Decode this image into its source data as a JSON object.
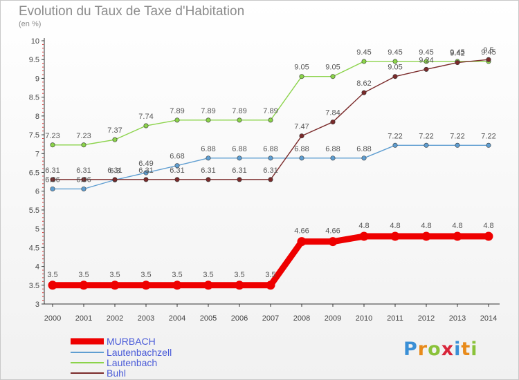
{
  "title": "Evolution du Taux de Taxe d'Habitation",
  "subtitle": "(en %)",
  "logo": {
    "text": "Proxiti",
    "letter_colors": [
      "#3a8fd6",
      "#e88a1a",
      "#8ac23a",
      "#d8253a",
      "#3a8fd6",
      "#e88a1a",
      "#8ac23a"
    ]
  },
  "chart_data": {
    "type": "line",
    "x": [
      "2000",
      "2001",
      "2002",
      "2003",
      "2004",
      "2005",
      "2006",
      "2007",
      "2008",
      "2009",
      "2010",
      "2011",
      "2012",
      "2013",
      "2014"
    ],
    "ylim": [
      3,
      10
    ],
    "yticks": [
      "3",
      "3.5",
      "4",
      "4.5",
      "5",
      "5.5",
      "6",
      "6.5",
      "7",
      "7.5",
      "8",
      "8.5",
      "9",
      "9.5",
      "10"
    ],
    "grid": false,
    "legend": "bottom-left",
    "series": [
      {
        "name": "MURBACH",
        "color": "#ee0000",
        "values": [
          3.5,
          3.5,
          3.5,
          3.5,
          3.5,
          3.5,
          3.5,
          3.5,
          4.66,
          4.66,
          4.8,
          4.8,
          4.8,
          4.8,
          4.8
        ],
        "labels": [
          "3.5",
          "3.5",
          "3.5",
          "3.5",
          "3.5",
          "3.5",
          "3.5",
          "3.5",
          "4.66",
          "4.66",
          "4.8",
          "4.8",
          "4.8",
          "4.8",
          "4.8"
        ]
      },
      {
        "name": "Lautenbachzell",
        "color": "#5f9ed1",
        "values": [
          6.06,
          6.06,
          6.3,
          6.49,
          6.68,
          6.88,
          6.88,
          6.88,
          6.88,
          6.88,
          6.88,
          7.22,
          7.22,
          7.22,
          7.22
        ],
        "labels": [
          "6.06",
          "6.06",
          "6.3",
          "6.49",
          "6.68",
          "6.88",
          "6.88",
          "6.88",
          "6.88",
          "6.88",
          "6.88",
          "7.22",
          "7.22",
          "7.22",
          "7.22"
        ]
      },
      {
        "name": "Lautenbach",
        "color": "#8bd34a",
        "values": [
          7.23,
          7.23,
          7.37,
          7.74,
          7.89,
          7.89,
          7.89,
          7.89,
          9.05,
          9.05,
          9.45,
          9.45,
          9.45,
          9.45,
          9.45
        ],
        "labels": [
          "7.23",
          "7.23",
          "7.37",
          "7.74",
          "7.89",
          "7.89",
          "7.89",
          "7.89",
          "9.05",
          "9.05",
          "9.45",
          "9.45",
          "9.45",
          "9.45",
          "9.45"
        ]
      },
      {
        "name": "Buhl",
        "color": "#7a2a2a",
        "values": [
          6.31,
          6.31,
          6.31,
          6.31,
          6.31,
          6.31,
          6.31,
          6.31,
          7.47,
          7.84,
          8.62,
          9.05,
          9.24,
          9.42,
          9.5
        ],
        "labels": [
          "6.31",
          "6.31",
          "6.31",
          "6.31",
          "6.31",
          "6.31",
          "6.31",
          "6.31",
          "7.47",
          "7.84",
          "8.62",
          "9.05",
          "9.24",
          "9.42",
          "9.5"
        ]
      }
    ]
  }
}
